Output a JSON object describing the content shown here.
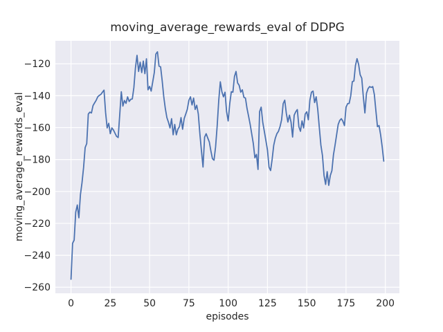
{
  "title": "moving_average_rewards_eval of DDPG",
  "xlabel": "episodes",
  "ylabel": "moving_average_rewards_eval",
  "colors": {
    "line": "#4c72b0",
    "axes_background": "#eaeaf2",
    "grid": "#ffffff",
    "text": "#262626",
    "figure_background": "#ffffff"
  },
  "chart_data": {
    "type": "line",
    "title": "moving_average_rewards_eval of DDPG",
    "xlabel": "episodes",
    "ylabel": "moving_average_rewards_eval",
    "legend": null,
    "grid": true,
    "x_ticks": [
      0,
      25,
      50,
      75,
      100,
      125,
      150,
      175,
      200
    ],
    "y_ticks": [
      -120,
      -140,
      -160,
      -180,
      -200,
      -220,
      -240,
      -260
    ],
    "xlim": [
      -9.95,
      208.95
    ],
    "ylim": [
      -263.8,
      -105.6
    ],
    "series": [
      {
        "name": "moving_average_rewards_eval",
        "color": "#4c72b0",
        "x_start": 0,
        "x_step": 1,
        "values": [
          -255,
          -232.5,
          -230.5,
          -213,
          -208.5,
          -216.5,
          -202,
          -194.5,
          -185,
          -172.5,
          -170,
          -151.5,
          -150.3,
          -150.8,
          -146.2,
          -144.5,
          -142.9,
          -140.7,
          -139.8,
          -139.2,
          -137.8,
          -136.5,
          -150.5,
          -160.2,
          -157.3,
          -163.8,
          -160.2,
          -161.5,
          -163.5,
          -165.5,
          -166.2,
          -152,
          -137.5,
          -146.5,
          -143,
          -144.8,
          -140.7,
          -143.6,
          -142.3,
          -142,
          -134.9,
          -122.5,
          -114.7,
          -124.8,
          -119,
          -125.5,
          -118.3,
          -126.2,
          -116.9,
          -136.3,
          -134.2,
          -137.1,
          -131.3,
          -125.5,
          -113.9,
          -112.5,
          -121.5,
          -121.9,
          -130.5,
          -140.5,
          -148,
          -153.7,
          -156.6,
          -160.2,
          -154.4,
          -164.5,
          -158,
          -164.5,
          -161,
          -159.4,
          -153.7,
          -161,
          -154.4,
          -151.5,
          -148.5,
          -142.9,
          -140.7,
          -145.8,
          -141.5,
          -148.6,
          -146,
          -151.5,
          -164,
          -174.6,
          -184.7,
          -166,
          -163.8,
          -166.5,
          -169,
          -174.6,
          -179.5,
          -180.4,
          -172,
          -159,
          -143,
          -131.3,
          -137.5,
          -140.7,
          -137.8,
          -150,
          -155.8,
          -145,
          -137.5,
          -137.8,
          -128,
          -124.8,
          -132,
          -133.5,
          -137.8,
          -136.3,
          -141,
          -141.5,
          -148,
          -152.9,
          -158,
          -164,
          -170,
          -178.9,
          -176.8,
          -186.2,
          -150,
          -147.2,
          -156.6,
          -162.3,
          -168.1,
          -174,
          -184.8,
          -186.9,
          -179.7,
          -171,
          -166.6,
          -163.8,
          -162.3,
          -159.4,
          -155.1,
          -145,
          -142.8,
          -151,
          -156.5,
          -152.2,
          -156.5,
          -165.9,
          -152.2,
          -150.1,
          -148.7,
          -159.5,
          -162.3,
          -155.8,
          -160.2,
          -151.5,
          -150.1,
          -155.1,
          -142.8,
          -137.8,
          -137.1,
          -144.3,
          -140.7,
          -148.6,
          -160,
          -171,
          -177.5,
          -190,
          -195.6,
          -187.6,
          -196.2,
          -190,
          -187,
          -177,
          -171,
          -164.5,
          -158,
          -155.5,
          -154.4,
          -156,
          -158.7,
          -147.2,
          -145,
          -144.8,
          -140,
          -131.2,
          -130.8,
          -121,
          -116.8,
          -120.4,
          -126.9,
          -129,
          -140.7,
          -150.8,
          -138.5,
          -135.6,
          -134.3,
          -134.8,
          -134.3,
          -139.2,
          -149.5,
          -159.4,
          -158.7,
          -164.5,
          -172,
          -181
        ]
      }
    ]
  }
}
